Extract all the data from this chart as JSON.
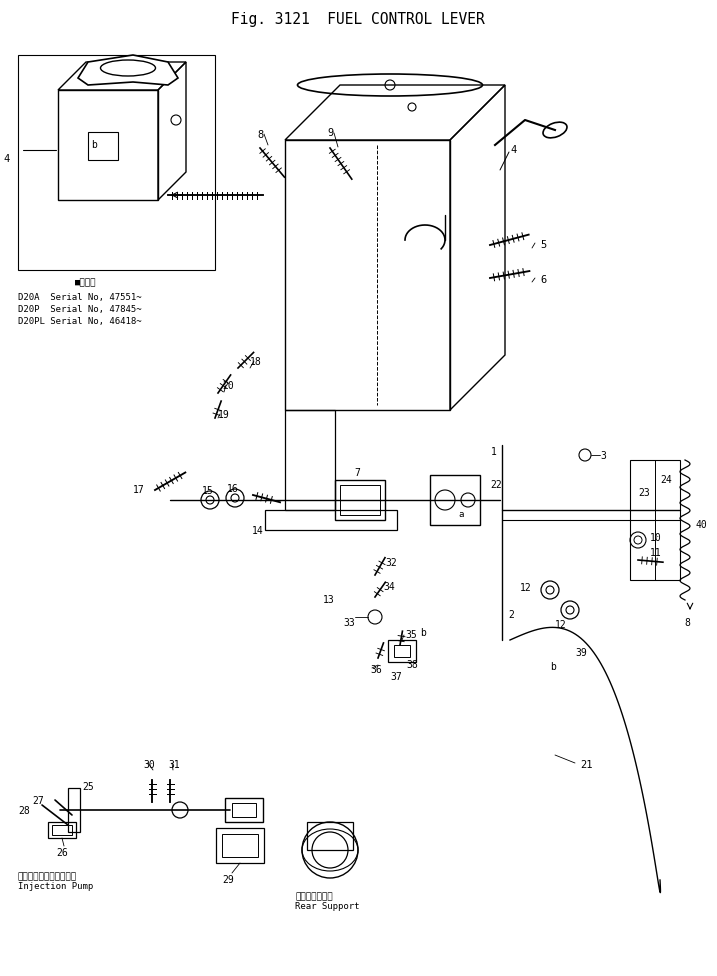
{
  "title": "Fig. 3121  FUEL CONTROL LEVER",
  "bg_color": "#ffffff",
  "line_color": "#000000",
  "title_fontsize": 11,
  "labels": {
    "injection_pump_jp": "インジェクションポンプ",
    "injection_pump_en": "Injection Pump",
    "rear_support_jp": "リヤーサポート",
    "rear_support_en": "Rear Support",
    "d20a": "D20A  Serial No, 47551~",
    "d20p": "D20P  Serial No, 47845~",
    "d20pl": "D20PL Serial No, 46418~"
  }
}
